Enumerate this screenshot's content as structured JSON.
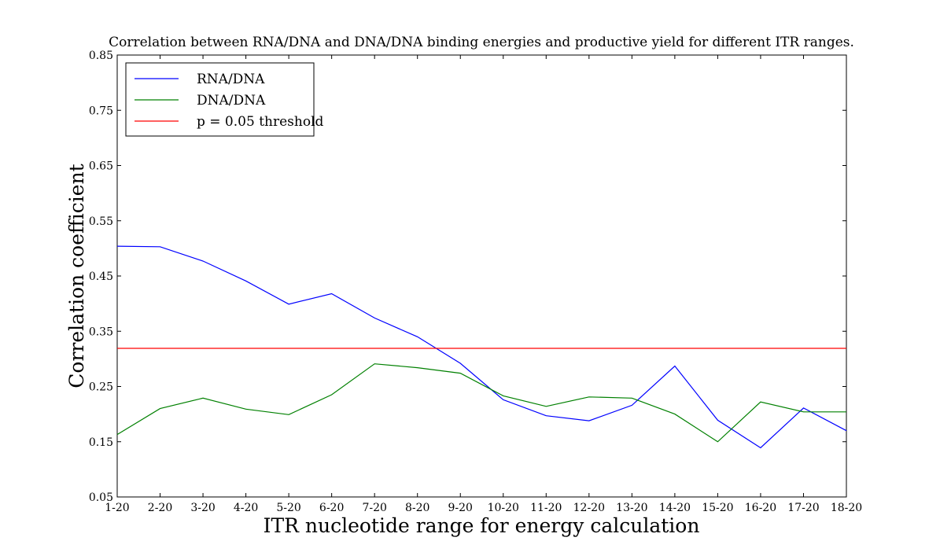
{
  "chart_data": {
    "type": "line",
    "title": "Correlation between RNA/DNA and DNA/DNA binding energies and productive yield for different ITR ranges.",
    "xlabel": "ITR nucleotide range for energy calculation",
    "ylabel": "Correlation coefficient",
    "categories": [
      "1-20",
      "2-20",
      "3-20",
      "4-20",
      "5-20",
      "6-20",
      "7-20",
      "8-20",
      "9-20",
      "10-20",
      "11-20",
      "12-20",
      "13-20",
      "14-20",
      "15-20",
      "16-20",
      "17-20",
      "18-20"
    ],
    "ylim": [
      0.05,
      0.85
    ],
    "yticks": [
      "0.05",
      "0.15",
      "0.25",
      "0.35",
      "0.45",
      "0.55",
      "0.65",
      "0.75",
      "0.85"
    ],
    "grid": false,
    "legend_position": "top-left",
    "series": [
      {
        "name": "RNA/DNA",
        "color": "#0000ff",
        "values": [
          0.504,
          0.503,
          0.477,
          0.441,
          0.399,
          0.418,
          0.374,
          0.34,
          0.292,
          0.226,
          0.197,
          0.188,
          0.216,
          0.287,
          0.189,
          0.139,
          0.211,
          0.17
        ]
      },
      {
        "name": "DNA/DNA",
        "color": "#008000",
        "values": [
          0.163,
          0.21,
          0.229,
          0.209,
          0.199,
          0.235,
          0.291,
          0.284,
          0.274,
          0.233,
          0.214,
          0.231,
          0.229,
          0.2,
          0.15,
          0.222,
          0.204,
          0.204
        ]
      },
      {
        "name": "p = 0.05 threshold",
        "color": "#ff0000",
        "values": [
          0.319,
          0.319,
          0.319,
          0.319,
          0.319,
          0.319,
          0.319,
          0.319,
          0.319,
          0.319,
          0.319,
          0.319,
          0.319,
          0.319,
          0.319,
          0.319,
          0.319,
          0.319
        ]
      }
    ]
  }
}
